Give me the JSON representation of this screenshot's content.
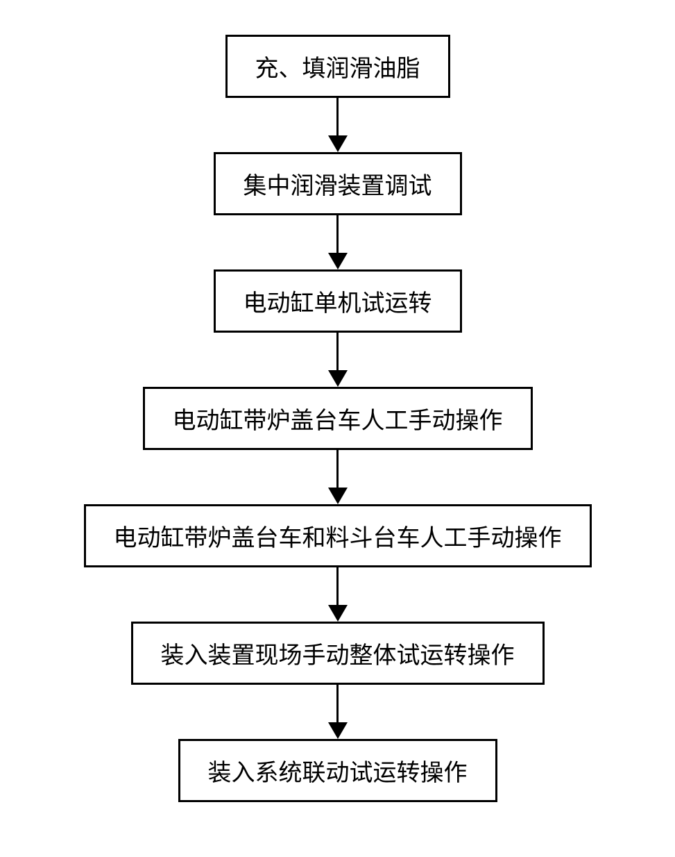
{
  "flowchart": {
    "type": "flowchart",
    "direction": "vertical",
    "background_color": "#ffffff",
    "border_color": "#000000",
    "border_width": 3,
    "text_color": "#000000",
    "font_size": 34,
    "font_family": "SimSun",
    "arrow_color": "#000000",
    "arrow_line_width": 3,
    "arrow_head_width": 28,
    "arrow_head_height": 24,
    "box_padding_vertical": 18,
    "box_padding_horizontal": 40,
    "steps": [
      {
        "label": "充、填润滑油脂"
      },
      {
        "label": "集中润滑装置调试"
      },
      {
        "label": "电动缸单机试运转"
      },
      {
        "label": "电动缸带炉盖台车人工手动操作"
      },
      {
        "label": "电动缸带炉盖台车和料斗台车人工手动操作"
      },
      {
        "label": "装入装置现场手动整体试运转操作"
      },
      {
        "label": "装入系统联动试运转操作"
      }
    ]
  }
}
